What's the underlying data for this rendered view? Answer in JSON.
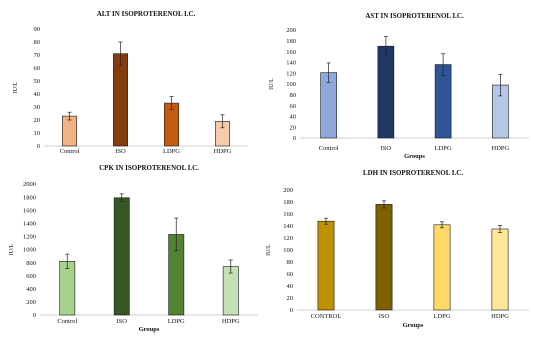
{
  "chart_data": [
    {
      "type": "bar",
      "title": "ALT IN ISOPROTERENOL I.C.",
      "xlabel": "",
      "ylabel": "IU/L",
      "ylim": [
        0,
        90
      ],
      "yticks": [
        0,
        10,
        20,
        30,
        40,
        50,
        60,
        70,
        80,
        90
      ],
      "grid": false,
      "categories": [
        "Control",
        "ISO",
        "LDPG",
        "HDPG"
      ],
      "values": [
        23,
        71,
        33,
        19
      ],
      "errors": [
        3,
        9,
        5,
        5
      ],
      "colors": [
        "#F4B183",
        "#843C0C",
        "#C55A11",
        "#F8CBAD"
      ]
    },
    {
      "type": "bar",
      "title": "AST IN ISOPROTERENOL I.C.",
      "xlabel": "Groups",
      "ylabel": "IU/L",
      "ylim": [
        0,
        200
      ],
      "yticks": [
        0,
        20,
        40,
        60,
        80,
        100,
        120,
        140,
        160,
        180,
        200
      ],
      "grid": false,
      "categories": [
        "Control",
        "ISO",
        "LDPG",
        "HDPG"
      ],
      "values": [
        121,
        170,
        136,
        98
      ],
      "errors": [
        18,
        18,
        20,
        20
      ],
      "colors": [
        "#8EA9DB",
        "#203864",
        "#2F5597",
        "#B4C7E7"
      ]
    },
    {
      "type": "bar",
      "title": "CPK IN ISOPROTERENOL I.C.",
      "xlabel": "Groups",
      "ylabel": "IU/L",
      "ylim": [
        0,
        2000
      ],
      "yticks": [
        0,
        200,
        400,
        600,
        800,
        1000,
        1200,
        1400,
        1600,
        1800,
        2000
      ],
      "grid": false,
      "categories": [
        "Control",
        "ISO",
        "LDPG",
        "HDPG"
      ],
      "values": [
        820,
        1790,
        1230,
        740
      ],
      "errors": [
        110,
        60,
        250,
        100
      ],
      "colors": [
        "#A9D18E",
        "#375623",
        "#548235",
        "#C5E0B4"
      ]
    },
    {
      "type": "bar",
      "title": "LDH IN ISOPROTERENOL I.C.",
      "xlabel": "Groups",
      "ylabel": "IU/L",
      "ylim": [
        0,
        200
      ],
      "yticks": [
        0,
        20,
        40,
        60,
        80,
        100,
        120,
        140,
        160,
        180,
        200
      ],
      "grid": false,
      "categories": [
        "CONTROL",
        "ISO",
        "LDPG",
        "HDPG"
      ],
      "values": [
        148,
        176,
        142,
        135
      ],
      "errors": [
        5,
        6,
        5,
        6
      ],
      "colors": [
        "#BF9000",
        "#7F6000",
        "#FFD966",
        "#FFE699"
      ]
    }
  ]
}
